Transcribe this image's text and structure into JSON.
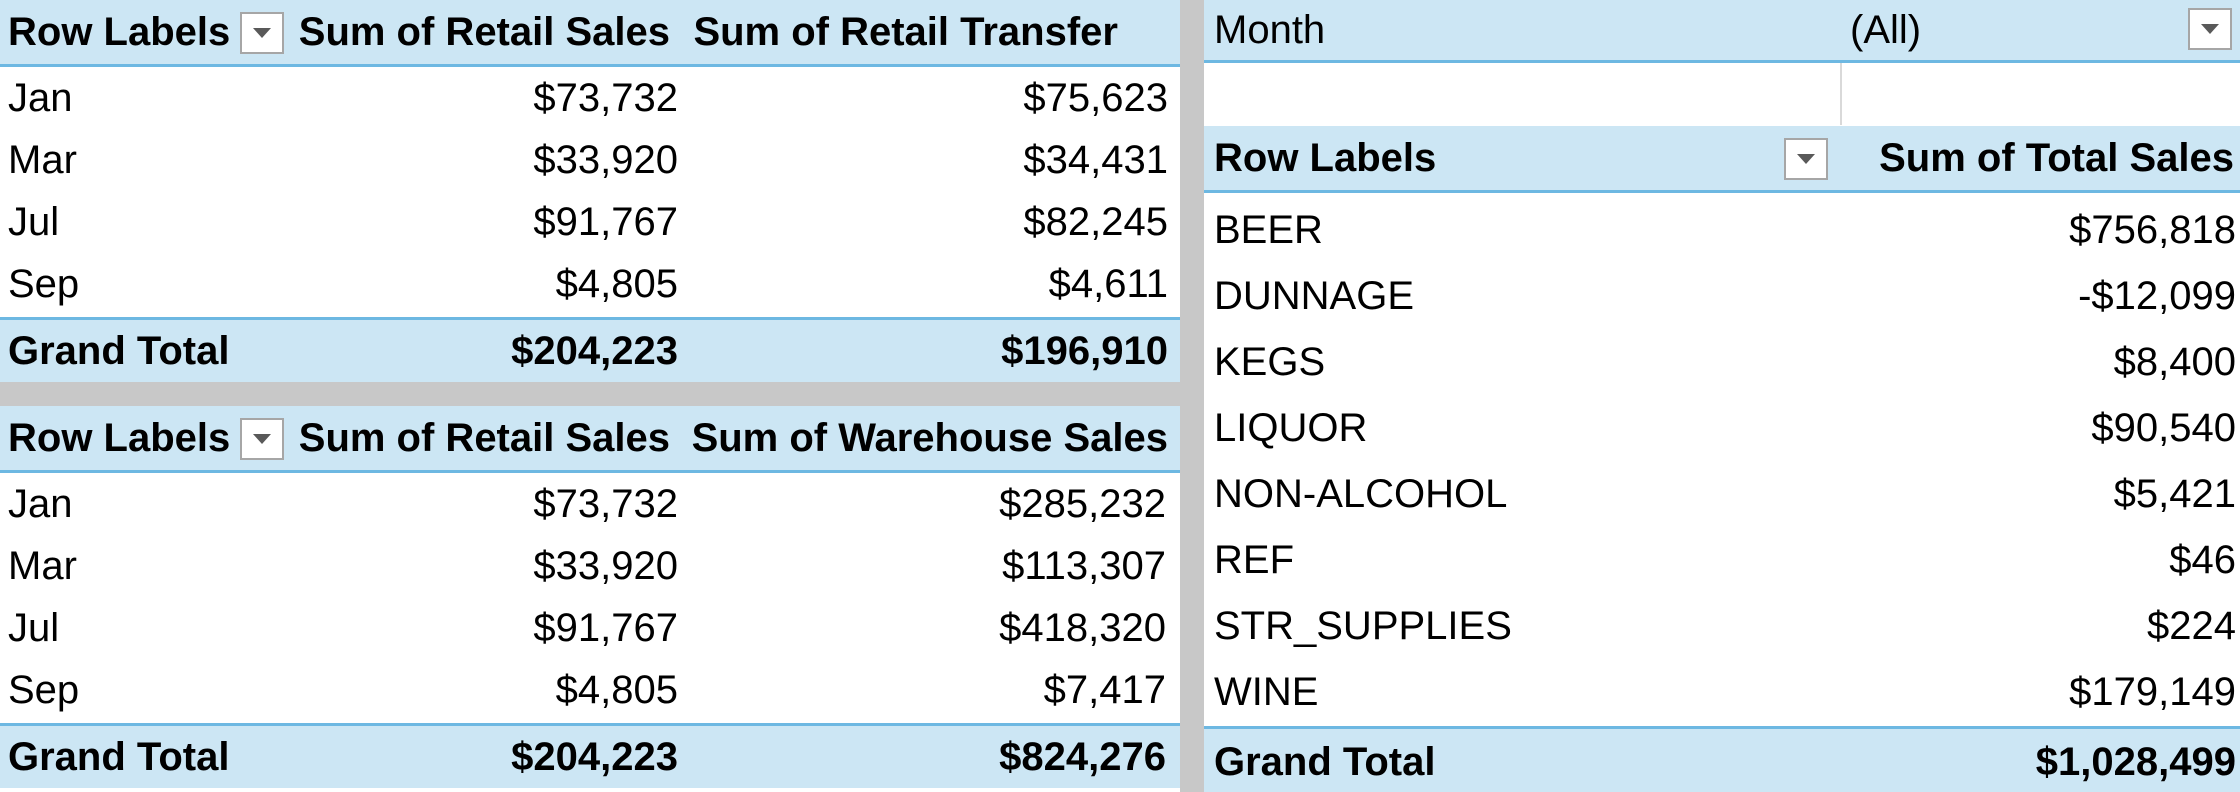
{
  "pivot_retail_transfer": {
    "header": {
      "row_labels": "Row Labels",
      "col1": "Sum of Retail Sales",
      "col2": "Sum of Retail Transfer"
    },
    "rows": [
      {
        "label": "Jan",
        "v1": "$73,732",
        "v2": "$75,623"
      },
      {
        "label": "Mar",
        "v1": "$33,920",
        "v2": "$34,431"
      },
      {
        "label": "Jul",
        "v1": "$91,767",
        "v2": "$82,245"
      },
      {
        "label": "Sep",
        "v1": "$4,805",
        "v2": "$4,611"
      }
    ],
    "total": {
      "label": "Grand Total",
      "v1": "$204,223",
      "v2": "$196,910"
    }
  },
  "pivot_warehouse": {
    "header": {
      "row_labels": "Row Labels",
      "col1": "Sum of Retail Sales",
      "col2": "Sum of Warehouse Sales"
    },
    "rows": [
      {
        "label": "Jan",
        "v1": "$73,732",
        "v2": "$285,232"
      },
      {
        "label": "Mar",
        "v1": "$33,920",
        "v2": "$113,307"
      },
      {
        "label": "Jul",
        "v1": "$91,767",
        "v2": "$418,320"
      },
      {
        "label": "Sep",
        "v1": "$4,805",
        "v2": "$7,417"
      }
    ],
    "total": {
      "label": "Grand Total",
      "v1": "$204,223",
      "v2": "$824,276"
    }
  },
  "pivot_total_sales": {
    "filter": {
      "field": "Month",
      "value": "(All)"
    },
    "header": {
      "row_labels": "Row Labels",
      "col1": "Sum of Total Sales"
    },
    "rows": [
      {
        "label": "BEER",
        "v1": "$756,818"
      },
      {
        "label": "DUNNAGE",
        "v1": "-$12,099"
      },
      {
        "label": "KEGS",
        "v1": "$8,400"
      },
      {
        "label": "LIQUOR",
        "v1": "$90,540"
      },
      {
        "label": "NON-ALCOHOL",
        "v1": "$5,421"
      },
      {
        "label": "REF",
        "v1": "$46"
      },
      {
        "label": "STR_SUPPLIES",
        "v1": "$224"
      },
      {
        "label": "WINE",
        "v1": "$179,149"
      }
    ],
    "total": {
      "label": "Grand Total",
      "v1": "$1,028,499"
    }
  },
  "colors": {
    "header_bg": "#cce6f4",
    "header_border": "#6db8e2",
    "divider": "#c8c8c8"
  },
  "icons": {
    "filter_dropdown": "chevron-down-icon"
  }
}
